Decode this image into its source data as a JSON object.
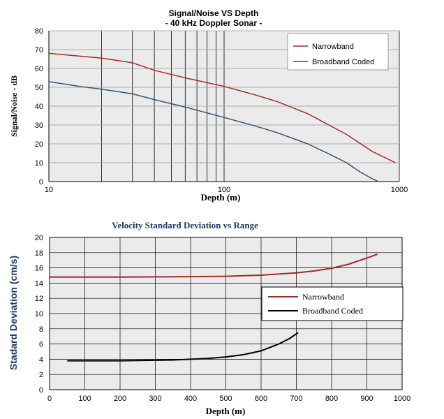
{
  "chart_data": [
    {
      "type": "line",
      "title": "Signal/Noise VS Depth",
      "subtitle": "- 40 kHz Doppler Sonar -",
      "xlabel": "Depth (m)",
      "ylabel": "Signal/Noise - dB",
      "xscale": "log",
      "xlim": [
        10,
        1000
      ],
      "ylim": [
        0,
        80
      ],
      "xticks": [
        "10",
        "100",
        "1000"
      ],
      "yticks": [
        "0",
        "10",
        "20",
        "30",
        "40",
        "50",
        "60",
        "70",
        "80"
      ],
      "legend_position": "top-right",
      "series": [
        {
          "name": "Narrowband",
          "color": "#a52a2a",
          "x": [
            10,
            15,
            20,
            30,
            40,
            60,
            100,
            150,
            200,
            300,
            500,
            700,
            950
          ],
          "y": [
            68,
            66.5,
            65.5,
            63,
            59,
            55,
            50.5,
            46,
            42.5,
            36,
            25,
            16,
            10
          ]
        },
        {
          "name": "Broadband Coded",
          "color": "#34546e",
          "x": [
            10,
            15,
            20,
            30,
            40,
            60,
            100,
            150,
            200,
            300,
            400,
            500,
            600,
            700,
            760
          ],
          "y": [
            53,
            50.5,
            49,
            46.5,
            43.5,
            39.5,
            34,
            29.5,
            26,
            20,
            14.5,
            10,
            5,
            1.5,
            0
          ]
        }
      ]
    },
    {
      "type": "line",
      "title": "Velocity Standard Deviation vs Range",
      "xlabel": "Depth (m)",
      "ylabel": "Stadard Deviation (cm/s)",
      "xlim": [
        0,
        1000
      ],
      "ylim": [
        0,
        20
      ],
      "xticks": [
        "0",
        "100",
        "200",
        "300",
        "400",
        "500",
        "600",
        "700",
        "800",
        "900",
        "1000"
      ],
      "yticks": [
        "0",
        "2",
        "4",
        "6",
        "8",
        "10",
        "12",
        "14",
        "16",
        "18",
        "20"
      ],
      "legend_position": "middle-right",
      "series": [
        {
          "name": "Narrowband",
          "color": "#a52a2a",
          "x": [
            0,
            200,
            400,
            500,
            600,
            700,
            750,
            800,
            850,
            900,
            930
          ],
          "y": [
            14.8,
            14.8,
            14.85,
            14.9,
            15.05,
            15.35,
            15.6,
            15.95,
            16.5,
            17.3,
            17.8
          ]
        },
        {
          "name": "Broadband Coded",
          "color": "#000000",
          "x": [
            50,
            200,
            350,
            450,
            500,
            550,
            600,
            650,
            680,
            705
          ],
          "y": [
            3.8,
            3.8,
            3.9,
            4.1,
            4.3,
            4.6,
            5.1,
            6.0,
            6.7,
            7.5
          ]
        }
      ]
    }
  ]
}
